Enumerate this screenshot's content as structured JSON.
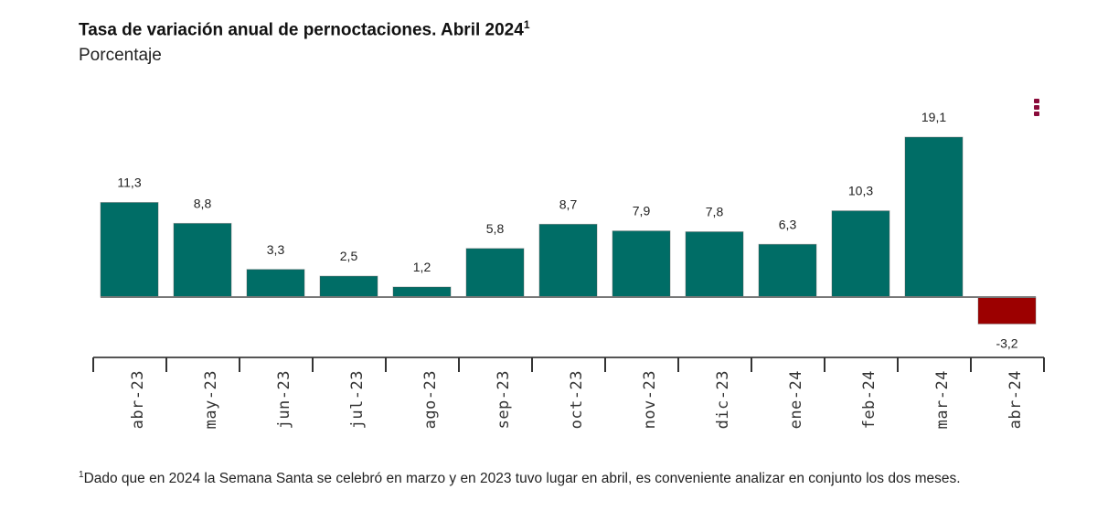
{
  "title": "Tasa de variación anual de pernoctaciones. Abril 2024",
  "title_sup": "1",
  "subtitle": "Porcentaje",
  "footnote": {
    "mark": "1",
    "text": "Dado que en 2024 la Semana Santa se celebró en marzo y en 2023 tuvo lugar en abril, es conveniente analizar en conjunto los dos meses."
  },
  "menu_icon": "vertical-ellipsis-icon",
  "colors": {
    "positive": "#006d66",
    "negative": "#9c0000",
    "menu": "#8a0a3a"
  },
  "chart_data": {
    "type": "bar",
    "title": "Tasa de variación anual de pernoctaciones. Abril 2024",
    "ylabel": "Porcentaje",
    "categories": [
      "abr-23",
      "may-23",
      "jun-23",
      "jul-23",
      "ago-23",
      "sep-23",
      "oct-23",
      "nov-23",
      "dic-23",
      "ene-24",
      "feb-24",
      "mar-24",
      "abr-24"
    ],
    "values": [
      11.3,
      8.8,
      3.3,
      2.5,
      1.2,
      5.8,
      8.7,
      7.9,
      7.8,
      6.3,
      10.3,
      19.1,
      -3.2
    ],
    "labels": [
      "11,3",
      "8,8",
      "3,3",
      "2,5",
      "1,2",
      "5,8",
      "8,7",
      "7,9",
      "7,8",
      "6,3",
      "10,3",
      "19,1",
      "-3,2"
    ],
    "ylim": [
      -3.2,
      19.1
    ],
    "grid": false
  }
}
